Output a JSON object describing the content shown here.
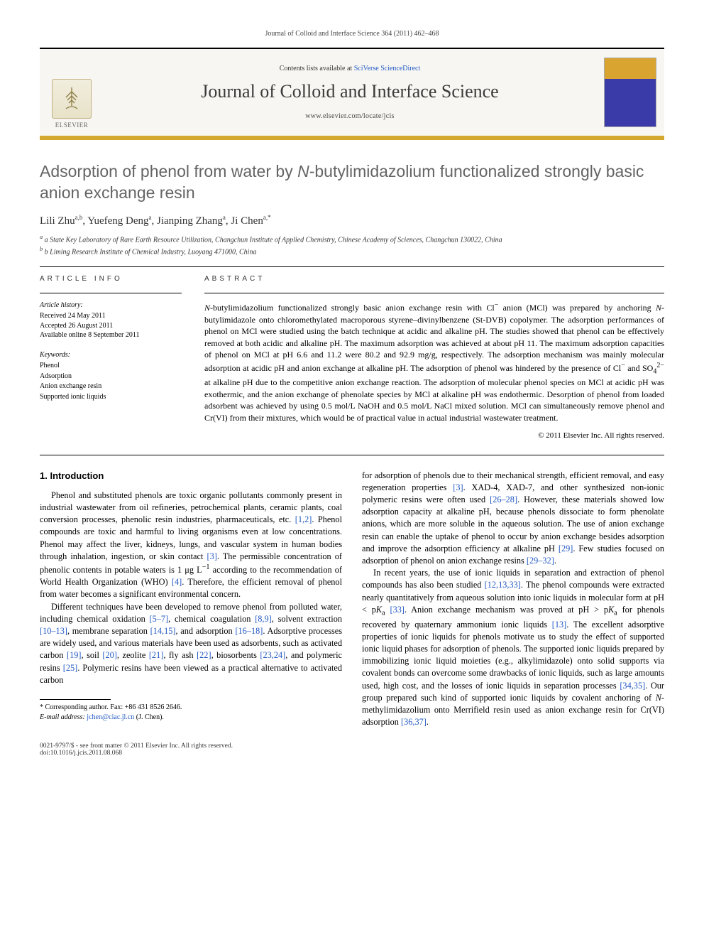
{
  "journal_header_line": "Journal of Colloid and Interface Science 364 (2011) 462–468",
  "banner": {
    "contents_prefix": "Contents lists available at ",
    "contents_link": "SciVerse ScienceDirect",
    "journal_name": "Journal of Colloid and Interface Science",
    "journal_url": "www.elsevier.com/locate/jcis",
    "publisher_label": "ELSEVIER"
  },
  "article": {
    "title_html": "Adsorption of phenol from water by <i>N</i>-butylimidazolium functionalized strongly basic anion exchange resin",
    "authors_html": "Lili Zhu<sup>a,b</sup>, Yuefeng Deng<sup>a</sup>, Jianping Zhang<sup>a</sup>, Ji Chen<sup>a,*</sup>",
    "affiliations": [
      "a State Key Laboratory of Rare Earth Resource Utilization, Changchun Institute of Applied Chemistry, Chinese Academy of Sciences, Changchun 130022, China",
      "b Liming Research Institute of Chemical Industry, Luoyang 471000, China"
    ]
  },
  "article_info": {
    "label": "ARTICLE INFO",
    "history_head": "Article history:",
    "history": [
      "Received 24 May 2011",
      "Accepted 26 August 2011",
      "Available online 8 September 2011"
    ],
    "keywords_head": "Keywords:",
    "keywords": [
      "Phenol",
      "Adsorption",
      "Anion exchange resin",
      "Supported ionic liquids"
    ]
  },
  "abstract": {
    "label": "ABSTRACT",
    "text_html": "<i>N</i>-butylimidazolium functionalized strongly basic anion exchange resin with Cl<sup>−</sup> anion (MCl) was prepared by anchoring <i>N</i>-butylimidazole onto chloromethylated macroporous styrene–divinylbenzene (St-DVB) copolymer. The adsorption performances of phenol on MCl were studied using the batch technique at acidic and alkaline pH. The studies showed that phenol can be effectively removed at both acidic and alkaline pH. The maximum adsorption was achieved at about pH 11. The maximum adsorption capacities of phenol on MCl at pH 6.6 and 11.2 were 80.2 and 92.9 mg/g, respectively. The adsorption mechanism was mainly molecular adsorption at acidic pH and anion exchange at alkaline pH. The adsorption of phenol was hindered by the presence of Cl<sup>−</sup> and SO<sub>4</sub><sup>2−</sup> at alkaline pH due to the competitive anion exchange reaction. The adsorption of molecular phenol species on MCl at acidic pH was exothermic, and the anion exchange of phenolate species by MCl at alkaline pH was endothermic. Desorption of phenol from loaded adsorbent was achieved by using 0.5 mol/L NaOH and 0.5 mol/L NaCl mixed solution. MCl can simultaneously remove phenol and Cr(VI) from their mixtures, which would be of practical value in actual industrial wastewater treatment.",
    "copyright": "© 2011 Elsevier Inc. All rights reserved."
  },
  "intro": {
    "heading": "1. Introduction",
    "p1_html": "Phenol and substituted phenols are toxic organic pollutants commonly present in industrial wastewater from oil refineries, petrochemical plants, ceramic plants, coal conversion processes, phenolic resin industries, pharmaceuticals, etc. <span class=\"ref\">[1,2]</span>. Phenol compounds are toxic and harmful to living organisms even at low concentrations. Phenol may affect the liver, kidneys, lungs, and vascular system in human bodies through inhalation, ingestion, or skin contact <span class=\"ref\">[3]</span>. The permissible concentration of phenolic contents in potable waters is 1 μg L<sup>−1</sup> according to the recommendation of World Health Organization (WHO) <span class=\"ref\">[4]</span>. Therefore, the efficient removal of phenol from water becomes a significant environmental concern.",
    "p2_html": "Different techniques have been developed to remove phenol from polluted water, including chemical oxidation <span class=\"ref\">[5–7]</span>, chemical coagulation <span class=\"ref\">[8,9]</span>, solvent extraction <span class=\"ref\">[10–13]</span>, membrane separation <span class=\"ref\">[14,15]</span>, and adsorption <span class=\"ref\">[16–18]</span>. Adsorptive processes are widely used, and various materials have been used as adsorbents, such as activated carbon <span class=\"ref\">[19]</span>, soil <span class=\"ref\">[20]</span>, zeolite <span class=\"ref\">[21]</span>, fly ash <span class=\"ref\">[22]</span>, biosorbents <span class=\"ref\">[23,24]</span>, and polymeric resins <span class=\"ref\">[25]</span>. Polymeric resins have been viewed as a practical alternative to activated carbon",
    "p3_html": "for adsorption of phenols due to their mechanical strength, efficient removal, and easy regeneration properties <span class=\"ref\">[3]</span>. XAD-4, XAD-7, and other synthesized non-ionic polymeric resins were often used <span class=\"ref\">[26–28]</span>. However, these materials showed low adsorption capacity at alkaline pH, because phenols dissociate to form phenolate anions, which are more soluble in the aqueous solution. The use of anion exchange resin can enable the uptake of phenol to occur by anion exchange besides adsorption and improve the adsorption efficiency at alkaline pH <span class=\"ref\">[29]</span>. Few studies focused on adsorption of phenol on anion exchange resins <span class=\"ref\">[29–32]</span>.",
    "p4_html": "In recent years, the use of ionic liquids in separation and extraction of phenol compounds has also been studied <span class=\"ref\">[12,13,33]</span>. The phenol compounds were extracted nearly quantitatively from aqueous solution into ionic liquids in molecular form at pH &lt; p<i>K</i><sub>a</sub> <span class=\"ref\">[33]</span>. Anion exchange mechanism was proved at pH &gt; p<i>K</i><sub>a</sub> for phenols recovered by quaternary ammonium ionic liquids <span class=\"ref\">[13]</span>. The excellent adsorptive properties of ionic liquids for phenols motivate us to study the effect of supported ionic liquid phases for adsorption of phenols. The supported ionic liquids prepared by immobilizing ionic liquid moieties (e.g., alkylimidazole) onto solid supports via covalent bonds can overcome some drawbacks of ionic liquids, such as large amounts used, high cost, and the losses of ionic liquids in separation processes <span class=\"ref\">[34,35]</span>. Our group prepared such kind of supported ionic liquids by covalent anchoring of <i>N</i>-methylimidazolium onto Merrifield resin used as anion exchange resin for Cr(VI) adsorption <span class=\"ref\">[36,37]</span>."
  },
  "corresponding": {
    "line1": "* Corresponding author. Fax: +86 431 8526 2646.",
    "line2_prefix": "E-mail address: ",
    "email": "jchen@ciac.jl.cn",
    "line2_suffix": " (J. Chen)."
  },
  "footer": {
    "left_line1": "0021-9797/$ - see front matter © 2011 Elsevier Inc. All rights reserved.",
    "left_line2": "doi:10.1016/j.jcis.2011.08.068"
  }
}
